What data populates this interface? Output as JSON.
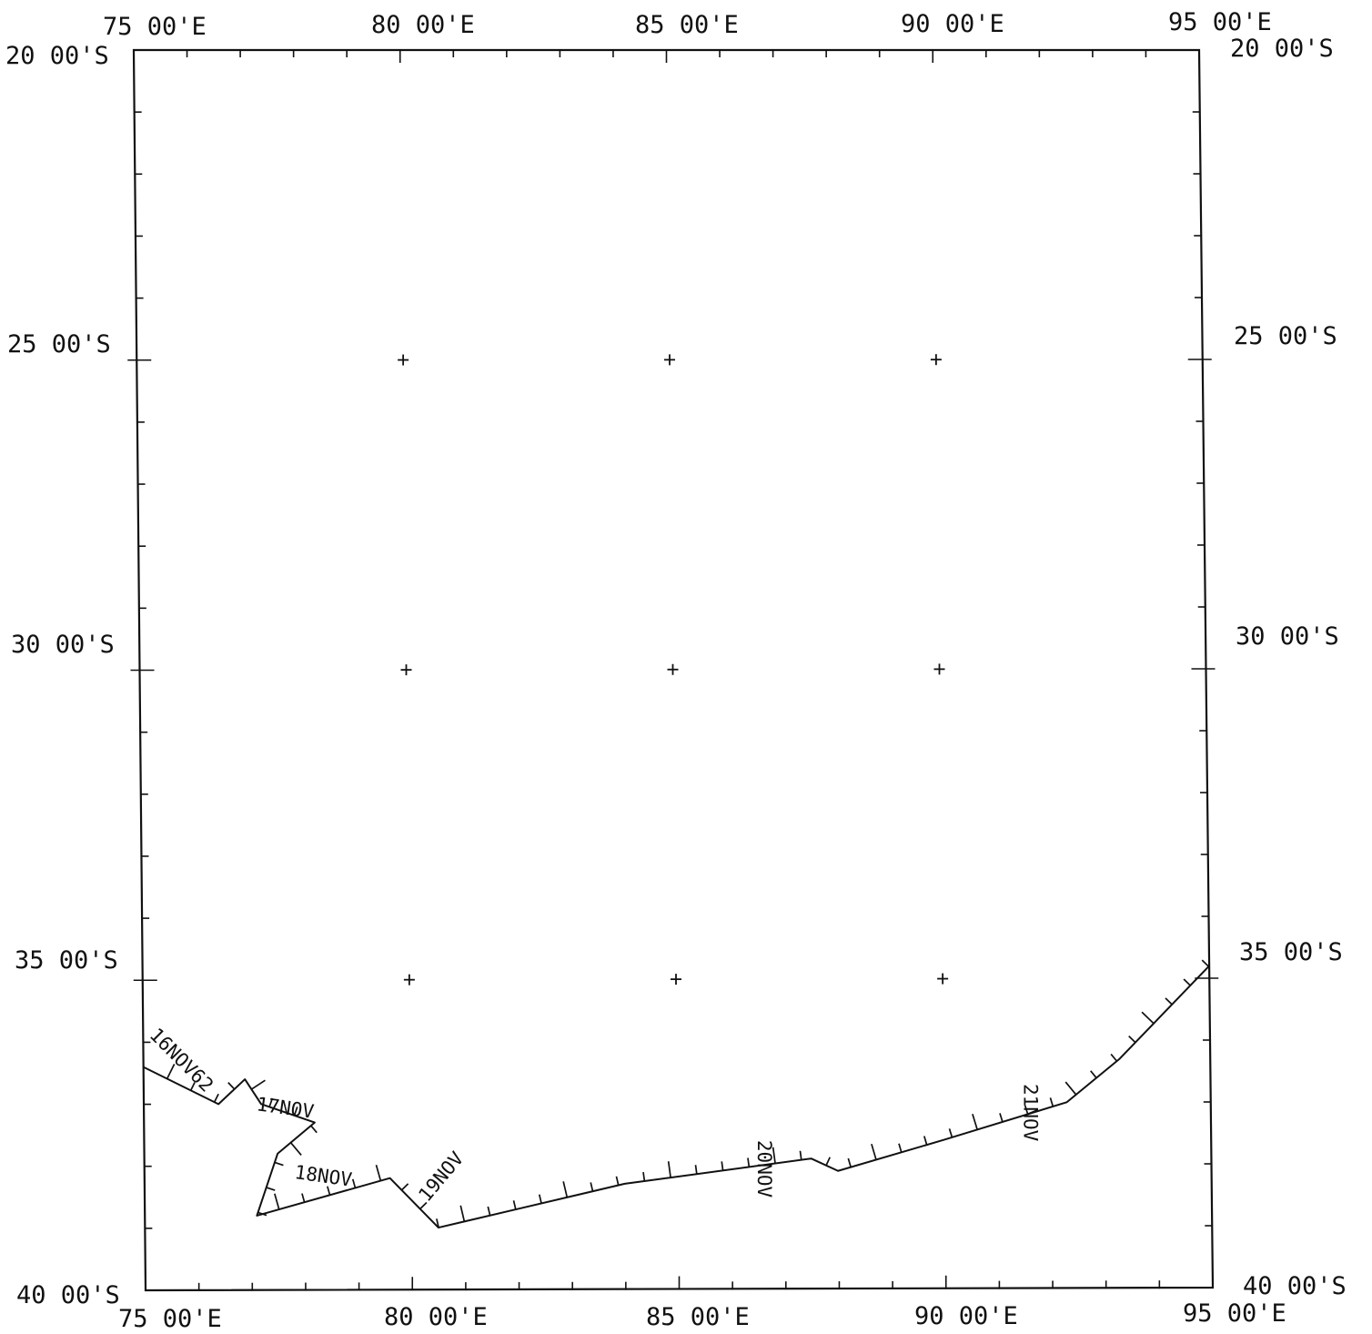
{
  "map": {
    "lon_min": 75,
    "lon_max": 95,
    "lat_min": -40,
    "lat_max": -20,
    "lon_labels": [
      "75 00'E",
      "80 00'E",
      "85 00'E",
      "90 00'E",
      "95 00'E"
    ],
    "lat_labels": [
      "20 00'S",
      "25 00'S",
      "30 00'S",
      "35 00'S",
      "40 00'S"
    ],
    "grid_crosses": [
      {
        "lon": 80,
        "lat": -25
      },
      {
        "lon": 85,
        "lat": -25
      },
      {
        "lon": 90,
        "lat": -25
      },
      {
        "lon": 80,
        "lat": -30
      },
      {
        "lon": 85,
        "lat": -30
      },
      {
        "lon": 90,
        "lat": -30
      },
      {
        "lon": 80,
        "lat": -35
      },
      {
        "lon": 85,
        "lat": -35
      },
      {
        "lon": 90,
        "lat": -35
      }
    ],
    "line_color": "#111111",
    "track": [
      {
        "lon": 75.0,
        "lat": -36.4
      },
      {
        "lon": 76.4,
        "lat": -37.0
      },
      {
        "lon": 76.9,
        "lat": -36.6
      },
      {
        "lon": 77.2,
        "lat": -37.0
      },
      {
        "lon": 78.2,
        "lat": -37.3
      },
      {
        "lon": 77.5,
        "lat": -37.8
      },
      {
        "lon": 77.1,
        "lat": -38.8
      },
      {
        "lon": 79.6,
        "lat": -38.2
      },
      {
        "lon": 80.5,
        "lat": -39.0
      },
      {
        "lon": 82.0,
        "lat": -38.7
      },
      {
        "lon": 84.0,
        "lat": -38.3
      },
      {
        "lon": 87.5,
        "lat": -37.9
      },
      {
        "lon": 88.0,
        "lat": -38.1
      },
      {
        "lon": 90.0,
        "lat": -37.6
      },
      {
        "lon": 92.3,
        "lat": -37.0
      },
      {
        "lon": 93.3,
        "lat": -36.3
      },
      {
        "lon": 95.0,
        "lat": -34.8
      }
    ],
    "track_labels": [
      {
        "text": "16NOV62",
        "lon": 75.1,
        "lat": -35.9,
        "angle": 45
      },
      {
        "text": "17NOV",
        "lon": 77.1,
        "lat": -37.1,
        "angle": 8
      },
      {
        "text": "18NOV",
        "lon": 77.8,
        "lat": -38.2,
        "angle": 8
      },
      {
        "text": "19NOV",
        "lon": 80.3,
        "lat": -38.6,
        "angle": -50
      },
      {
        "text": "20NOV",
        "lon": 86.5,
        "lat": -37.6,
        "angle": 90
      },
      {
        "text": "21NOV",
        "lon": 91.5,
        "lat": -36.7,
        "angle": 90
      }
    ]
  }
}
